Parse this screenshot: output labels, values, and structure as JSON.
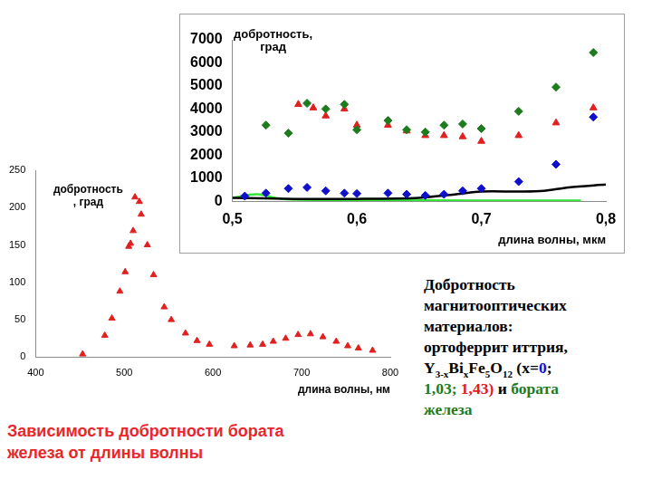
{
  "chart_data": [
    {
      "type": "scatter",
      "x_label": "длина волны, мкм",
      "y_label": [
        "добротность,",
        "град"
      ],
      "xlim": [
        0.5,
        0.8
      ],
      "xticks": [
        {
          "value": 0.5,
          "label": "0,5"
        },
        {
          "value": 0.6,
          "label": "0,6"
        },
        {
          "value": 0.7,
          "label": "0,7"
        },
        {
          "value": 0.8,
          "label": "0,8"
        }
      ],
      "ylim": [
        0,
        7000
      ],
      "yticks": [
        0,
        1000,
        2000,
        3000,
        4000,
        5000,
        6000,
        7000
      ],
      "grid": false,
      "series": [
        {
          "color": "#1e7b1e",
          "marker": "diamond",
          "x": [
            0.527,
            0.545,
            0.56,
            0.575,
            0.59,
            0.6,
            0.625,
            0.64,
            0.655,
            0.67,
            0.685,
            0.7,
            0.73,
            0.76,
            0.79
          ],
          "values": [
            3300,
            2950,
            4250,
            4000,
            4200,
            3100,
            3500,
            3100,
            3000,
            3300,
            3350,
            3150,
            3900,
            4950,
            6450
          ]
        },
        {
          "color": "#e02020",
          "marker": "triangle",
          "x": [
            0.553,
            0.565,
            0.575,
            0.59,
            0.6,
            0.625,
            0.64,
            0.655,
            0.67,
            0.685,
            0.7,
            0.73,
            0.76,
            0.79
          ],
          "values": [
            4200,
            4050,
            3700,
            4000,
            3300,
            3300,
            3050,
            2850,
            2850,
            2800,
            2600,
            2850,
            3400,
            4050
          ]
        },
        {
          "color": "#1010cc",
          "marker": "diamond",
          "x": [
            0.51,
            0.527,
            0.545,
            0.56,
            0.575,
            0.59,
            0.6,
            0.625,
            0.64,
            0.655,
            0.67,
            0.685,
            0.7,
            0.73,
            0.76,
            0.79
          ],
          "values": [
            220,
            350,
            550,
            600,
            450,
            350,
            330,
            350,
            300,
            250,
            300,
            450,
            550,
            850,
            1600,
            3650
          ]
        },
        {
          "type": "line",
          "color": "#000000",
          "x": [
            0.5,
            0.55,
            0.6,
            0.65,
            0.68,
            0.7,
            0.73,
            0.75,
            0.77,
            0.8
          ],
          "values": [
            150,
            100,
            100,
            150,
            300,
            420,
            420,
            450,
            600,
            720
          ]
        },
        {
          "type": "line",
          "color": "#33e633",
          "x": [
            0.5,
            0.52,
            0.54,
            0.6,
            0.7,
            0.78
          ],
          "values": [
            150,
            300,
            100,
            50,
            30,
            30
          ]
        }
      ]
    },
    {
      "type": "scatter",
      "x_label": "длина волны, нм",
      "y_label": [
        "добротность",
        ", град"
      ],
      "xlim": [
        400,
        800
      ],
      "xticks": [
        400,
        500,
        600,
        700,
        800
      ],
      "ylim": [
        0,
        250
      ],
      "yticks": [
        0,
        50,
        100,
        150,
        200,
        250
      ],
      "grid": false,
      "series": [
        {
          "color": "#e02020",
          "marker": "triangle",
          "x": [
            453,
            478,
            486,
            495,
            501,
            505,
            507,
            510,
            512,
            517,
            519,
            526,
            533,
            545,
            553,
            569,
            582,
            596,
            624,
            642,
            656,
            668,
            682,
            696,
            710,
            724,
            739,
            752,
            764,
            780
          ],
          "values": [
            4,
            29,
            52,
            88,
            114,
            148,
            152,
            169,
            214,
            208,
            191,
            150,
            110,
            67,
            50,
            32,
            22,
            17,
            15,
            16,
            17,
            21,
            25,
            30,
            31,
            27,
            21,
            15,
            12,
            9
          ]
        }
      ]
    }
  ],
  "description": [
    [
      {
        "text": "Добротность"
      }
    ],
    [
      {
        "text": "магнитооптических"
      }
    ],
    [
      {
        "text": "материалов:"
      }
    ],
    [
      {
        "text": "ортоферрит иттрия,"
      }
    ],
    [
      {
        "text": "Y"
      },
      {
        "text": "3-x",
        "sub": true
      },
      {
        "text": "Bi"
      },
      {
        "text": "x",
        "sub": true
      },
      {
        "text": "Fe"
      },
      {
        "text": "5",
        "sub": true
      },
      {
        "text": "O"
      },
      {
        "text": "12",
        "sub": true
      },
      {
        "text": " (x="
      },
      {
        "text": "0",
        "color": "#1010cc"
      },
      {
        "text": ";"
      }
    ],
    [
      {
        "text": "1,03; ",
        "color": "#1e7b1e"
      },
      {
        "text": "1,43)",
        "color": "#e02020"
      },
      {
        "text": " и "
      },
      {
        "text": "бората",
        "color": "#1e7b1e"
      }
    ],
    [
      {
        "text": "железа",
        "color": "#1e7b1e"
      }
    ]
  ],
  "caption": {
    "lines": [
      "Зависимость добротности бората",
      "железа от длины волны"
    ],
    "color": "#e8262b"
  }
}
